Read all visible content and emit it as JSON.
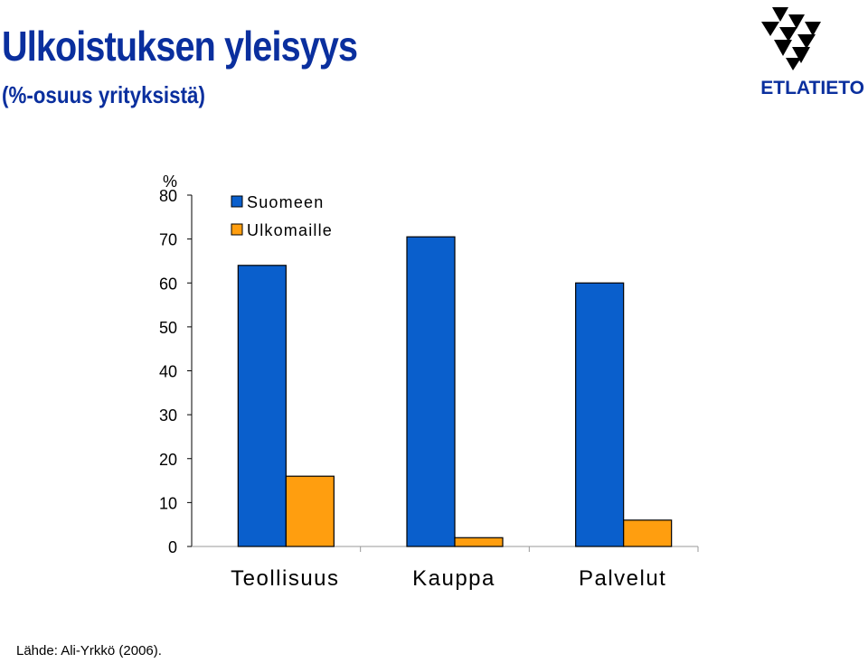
{
  "header": {
    "title": "Ulkoistuksen yleisyys",
    "subtitle": "(%-osuus yrityksistä)"
  },
  "brand": {
    "name": "ETLATIETO",
    "logo_icon": "etla-triangles-logo",
    "color": "#0a2f9e"
  },
  "footer": {
    "source": "Lähde: Ali-Yrkkö (2006)."
  },
  "chart_data": {
    "type": "bar",
    "title": "Ulkoistuksen yleisyys",
    "subtitle": "(%-osuus yrityksistä)",
    "ylabel": "%",
    "xlabel": "",
    "ylim": [
      0,
      80
    ],
    "yticks": [
      0,
      10,
      20,
      30,
      40,
      50,
      60,
      70,
      80
    ],
    "categories": [
      "Teollisuus",
      "Kauppa",
      "Palvelut"
    ],
    "series": [
      {
        "name": "Suomeen",
        "color": "#0a5fcc",
        "values": [
          64,
          70.5,
          60
        ]
      },
      {
        "name": "Ulkomaille",
        "color": "#ff9e0f",
        "values": [
          16,
          2,
          6
        ]
      }
    ],
    "legend_position": "top-left",
    "grid": false
  }
}
